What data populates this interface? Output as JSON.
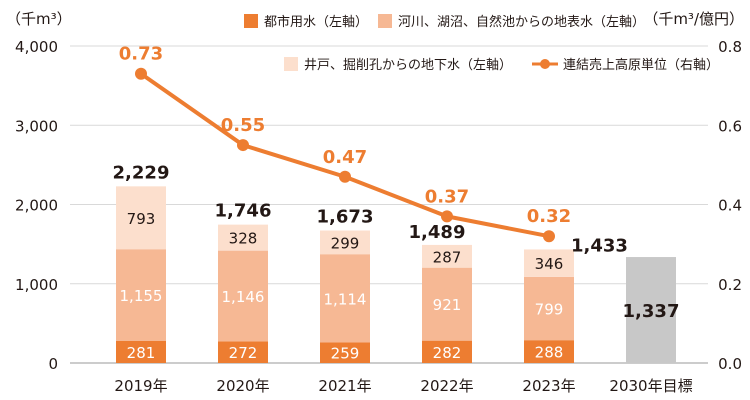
{
  "chart_data": {
    "type": "bar",
    "stacked": true,
    "categories": [
      "2019年",
      "2020年",
      "2021年",
      "2022年",
      "2023年",
      "2030年目標"
    ],
    "left_axis": {
      "unit": "（千m³）",
      "ylim": [
        0,
        4000
      ],
      "ticks": [
        0,
        1000,
        2000,
        3000,
        4000
      ],
      "tick_labels": [
        "0",
        "1,000",
        "2,000",
        "3,000",
        "4,000"
      ]
    },
    "right_axis": {
      "unit": "（千m³/億円）",
      "ylim": [
        0,
        0.8
      ],
      "ticks": [
        0,
        0.2,
        0.4,
        0.6,
        0.8
      ],
      "tick_labels": [
        "0.0",
        "0.2",
        "0.4",
        "0.6",
        "0.8"
      ]
    },
    "grid": true,
    "legend_position": "top",
    "series": [
      {
        "name": "都市用水（左軸）",
        "color": "#ed7d31",
        "values": [
          281,
          272,
          259,
          282,
          288,
          null
        ],
        "labels": [
          "281",
          "272",
          "259",
          "282",
          "288",
          ""
        ]
      },
      {
        "name": "河川、湖沼、自然池からの地表水（左軸）",
        "color": "#f6b894",
        "values": [
          1155,
          1146,
          1114,
          921,
          799,
          null
        ],
        "labels": [
          "1,155",
          "1,146",
          "1,114",
          "921",
          "799",
          ""
        ]
      },
      {
        "name": "井戸、掘削孔からの地下水（左軸）",
        "color": "#fcdfcd",
        "values": [
          793,
          328,
          299,
          287,
          346,
          null
        ],
        "labels": [
          "793",
          "328",
          "299",
          "287",
          "346",
          ""
        ]
      },
      {
        "name": "",
        "color": "#c8c8c8",
        "values": [
          null,
          null,
          null,
          null,
          null,
          1337
        ],
        "labels": [
          "",
          "",
          "",
          "",
          "",
          ""
        ]
      }
    ],
    "totals": [
      2229,
      1746,
      1673,
      1489,
      1433,
      1337
    ],
    "total_labels": [
      "2,229",
      "1,746",
      "1,673",
      "1,489",
      "1,433",
      "1,337"
    ],
    "line_series": {
      "name": "連結売上高原単位（右軸）",
      "color": "#ed7d31",
      "values": [
        0.73,
        0.55,
        0.47,
        0.37,
        0.32
      ],
      "labels": [
        "0.73",
        "0.55",
        "0.47",
        "0.37",
        "0.32"
      ]
    }
  }
}
